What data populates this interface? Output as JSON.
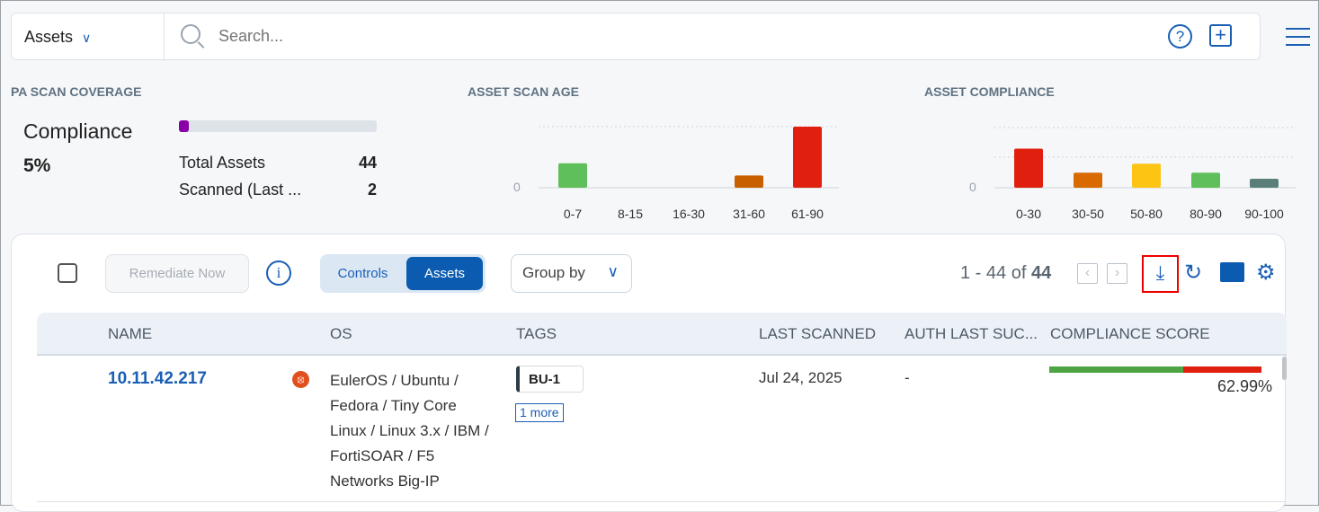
{
  "topbar": {
    "module": "Assets",
    "search_placeholder": "Search...",
    "icons": [
      "chevron-down-icon",
      "search-icon",
      "help-icon",
      "add-icon",
      "menu-icon"
    ]
  },
  "coverage": {
    "title": "PA SCAN COVERAGE",
    "label": "Compliance",
    "percent": "5%",
    "progress": 5,
    "progress_color": "#8a00a8",
    "rows": [
      {
        "label": "Total Assets",
        "value": "44"
      },
      {
        "label": "Scanned (Last ...",
        "value": "2"
      }
    ]
  },
  "chart_data": [
    {
      "type": "bar",
      "title": "ASSET SCAN AGE",
      "categories": [
        "0-7",
        "8-15",
        "16-30",
        "31-60",
        "61-90"
      ],
      "values": [
        4,
        0,
        0,
        2,
        10
      ],
      "colors": [
        "#5fbf5a",
        "#5fbf5a",
        "#5fbf5a",
        "#c86000",
        "#e01f0f"
      ],
      "ylim": [
        0,
        10
      ],
      "yticks": [
        "0"
      ],
      "grid": true
    },
    {
      "type": "bar",
      "title": "ASSET COMPLIANCE",
      "categories": [
        "0-30",
        "30-50",
        "50-80",
        "80-90",
        "90-100"
      ],
      "values": [
        13,
        5,
        8,
        5,
        3
      ],
      "colors": [
        "#e01f0f",
        "#d86a00",
        "#fdc414",
        "#5fbf5a",
        "#5a7f78"
      ],
      "ylim": [
        0,
        20
      ],
      "yticks": [
        "0"
      ],
      "grid": true
    }
  ],
  "toolbar": {
    "remediate": "Remediate Now",
    "seg_controls": "Controls",
    "seg_assets": "Assets",
    "group_by": "Group by",
    "pager_range": "1 - 44 of",
    "pager_total": "44"
  },
  "table": {
    "headers": [
      "NAME",
      "OS",
      "TAGS",
      "LAST SCANNED",
      "AUTH LAST SUC...",
      "COMPLIANCE SCORE"
    ],
    "rows": [
      {
        "name": "10.11.42.217",
        "os_icon": "ubuntu-icon",
        "os": "EulerOS / Ubuntu / Fedora / Tiny Core Linux / Linux 3.x / IBM / FortiSOAR / F5 Networks Big-IP",
        "tag": "BU-1",
        "more_tags": "1 more",
        "last_scanned": "Jul 24, 2025",
        "auth_last": "-",
        "score": "62.99%",
        "score_value": 62.99
      }
    ]
  }
}
